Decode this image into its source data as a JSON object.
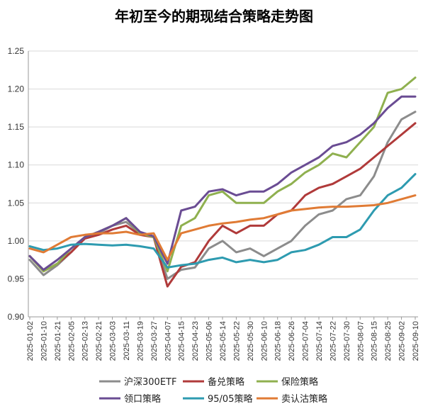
{
  "chart_data": {
    "type": "line",
    "title": "年初至今的期现结合策略走势图",
    "xlabel": "",
    "ylabel": "",
    "ylim": [
      0.9,
      1.25
    ],
    "yticks": [
      "0.90",
      "0.95",
      "1.00",
      "1.05",
      "1.10",
      "1.15",
      "1.20",
      "1.25"
    ],
    "x": [
      "2025-01-02",
      "2025-01-10",
      "2025-01-21",
      "2025-02-05",
      "2025-02-13",
      "2025-02-21",
      "2025-03-03",
      "2025-03-11",
      "2025-03-19",
      "2025-03-27",
      "2025-04-07",
      "2025-04-15",
      "2025-04-23",
      "2025-05-06",
      "2025-05-14",
      "2025-05-22",
      "2025-05-30",
      "2025-06-10",
      "2025-06-18",
      "2025-06-26",
      "2025-07-04",
      "2025-07-14",
      "2025-07-22",
      "2025-07-30",
      "2025-08-07",
      "2025-08-15",
      "2025-08-25",
      "2025-09-02",
      "2025-09-10"
    ],
    "legend_placement": "bottom",
    "grid": "horizontal",
    "series": [
      {
        "name": "沪深300ETF",
        "color": "#8c8c8c",
        "values": [
          0.975,
          0.955,
          0.968,
          0.985,
          1.005,
          1.01,
          1.02,
          1.025,
          1.01,
          1.005,
          0.95,
          0.962,
          0.965,
          0.99,
          1.0,
          0.985,
          0.99,
          0.98,
          0.99,
          1.0,
          1.02,
          1.035,
          1.04,
          1.055,
          1.06,
          1.085,
          1.13,
          1.16,
          1.17
        ]
      },
      {
        "name": "备兑策略",
        "color": "#b03a3a",
        "values": [
          0.98,
          0.96,
          0.97,
          0.985,
          1.003,
          1.008,
          1.015,
          1.02,
          1.008,
          1.005,
          0.94,
          0.966,
          0.972,
          1.0,
          1.02,
          1.01,
          1.02,
          1.02,
          1.035,
          1.04,
          1.06,
          1.07,
          1.075,
          1.085,
          1.095,
          1.11,
          1.125,
          1.14,
          1.155
        ]
      },
      {
        "name": "保险策略",
        "color": "#8fb04f",
        "values": [
          0.98,
          0.96,
          0.97,
          0.99,
          1.005,
          1.012,
          1.02,
          1.03,
          1.01,
          1.005,
          0.96,
          1.02,
          1.03,
          1.06,
          1.065,
          1.05,
          1.05,
          1.05,
          1.065,
          1.075,
          1.09,
          1.1,
          1.115,
          1.11,
          1.13,
          1.15,
          1.195,
          1.2,
          1.215
        ]
      },
      {
        "name": "领口策略",
        "color": "#6a4c93",
        "values": [
          0.98,
          0.962,
          0.975,
          0.99,
          1.005,
          1.012,
          1.02,
          1.03,
          1.012,
          1.006,
          0.97,
          1.04,
          1.045,
          1.065,
          1.068,
          1.06,
          1.065,
          1.065,
          1.075,
          1.09,
          1.1,
          1.11,
          1.125,
          1.13,
          1.14,
          1.155,
          1.175,
          1.19,
          1.19
        ]
      },
      {
        "name": "95/05策略",
        "color": "#2e9bb0",
        "values": [
          0.993,
          0.988,
          0.99,
          0.995,
          0.996,
          0.995,
          0.994,
          0.995,
          0.993,
          0.99,
          0.965,
          0.968,
          0.97,
          0.975,
          0.978,
          0.972,
          0.975,
          0.972,
          0.975,
          0.985,
          0.988,
          0.995,
          1.005,
          1.005,
          1.015,
          1.04,
          1.06,
          1.07,
          1.088
        ]
      },
      {
        "name": "卖认沽策略",
        "color": "#e07b35",
        "values": [
          0.99,
          0.985,
          0.995,
          1.005,
          1.008,
          1.01,
          1.01,
          1.012,
          1.008,
          1.01,
          0.975,
          1.01,
          1.015,
          1.02,
          1.023,
          1.025,
          1.028,
          1.03,
          1.035,
          1.04,
          1.042,
          1.044,
          1.045,
          1.045,
          1.046,
          1.047,
          1.05,
          1.055,
          1.06
        ]
      }
    ]
  }
}
